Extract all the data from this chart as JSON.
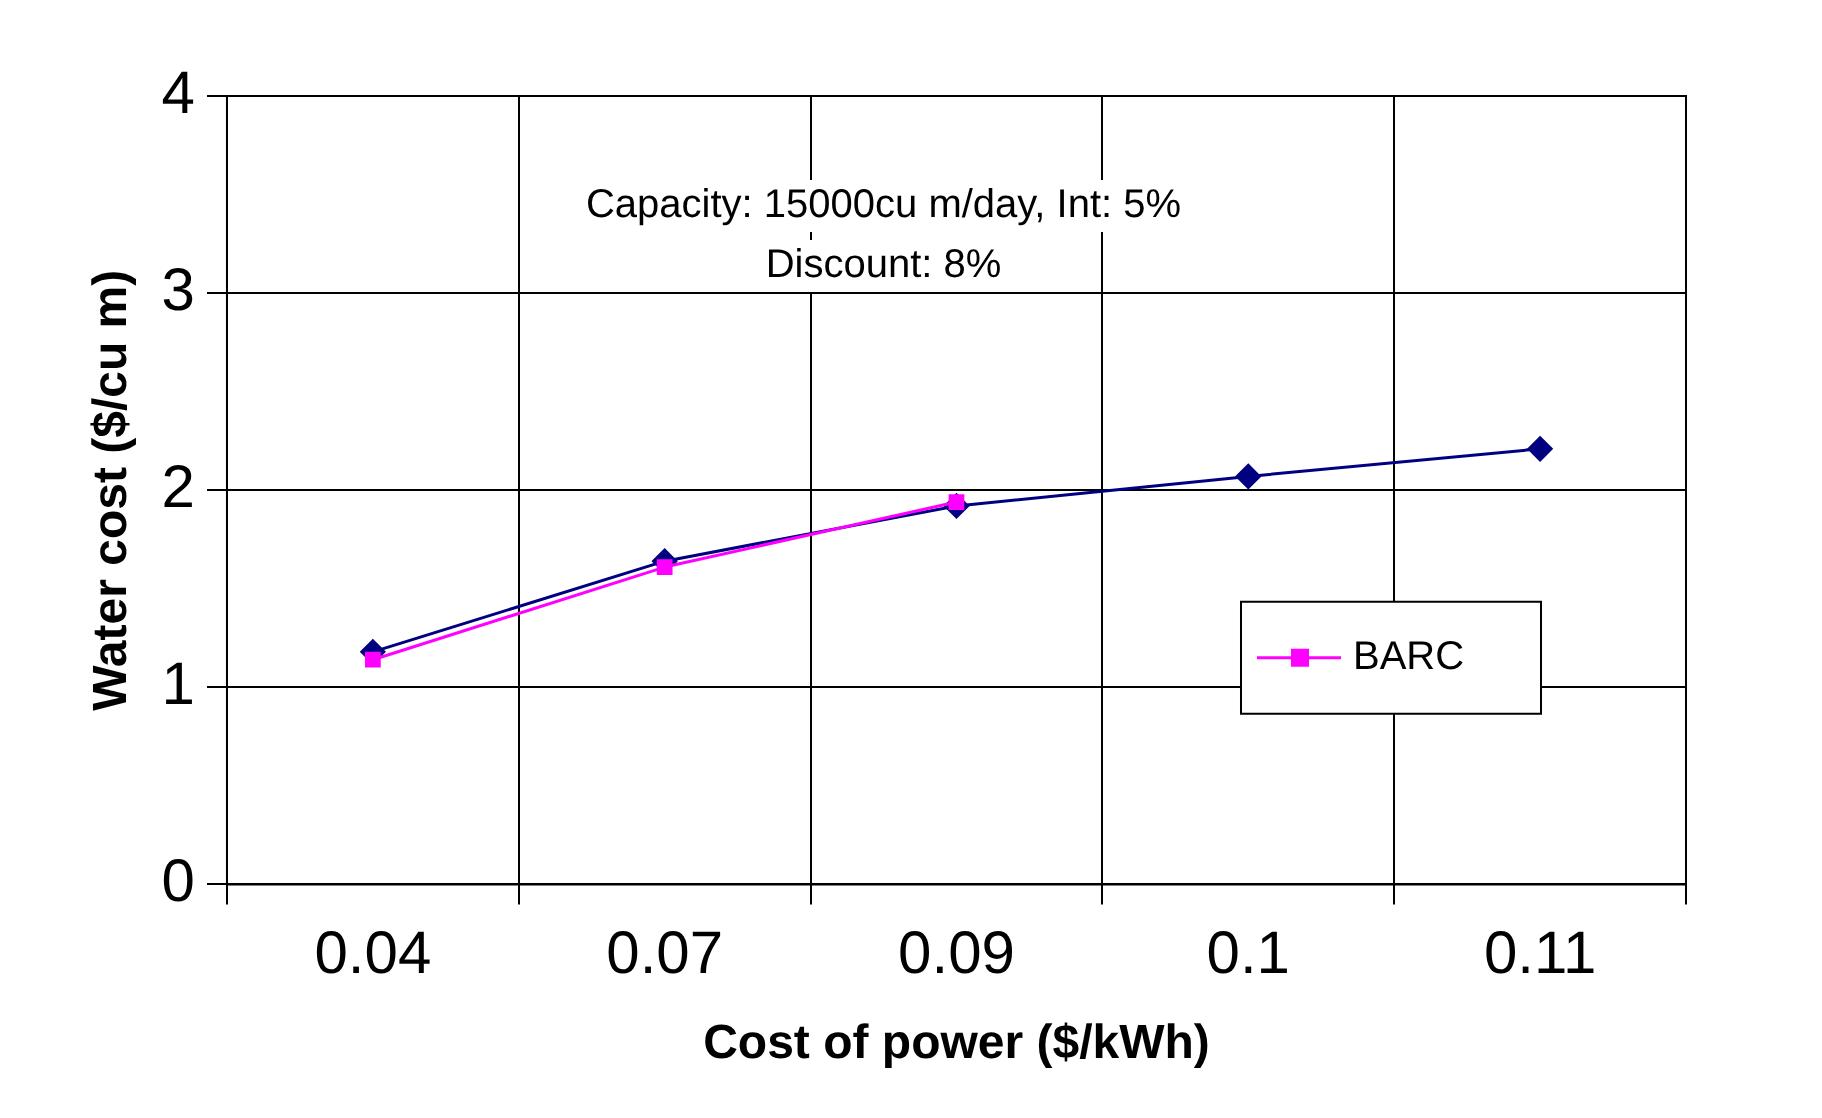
{
  "chart_data": {
    "type": "line",
    "xlabel": "Cost of power ($/kWh)",
    "ylabel": "Water cost ($/cu m)",
    "categories": [
      "0.04",
      "0.07",
      "0.09",
      "0.1",
      "0.11"
    ],
    "series": [
      {
        "color": "#000080",
        "marker": "diamond",
        "values": [
          1.18,
          1.64,
          1.92,
          2.07,
          2.21
        ]
      },
      {
        "name": "BARC",
        "color": "#ff00ff",
        "marker": "square",
        "values": [
          1.14,
          1.61,
          1.94,
          null,
          null
        ]
      }
    ],
    "ylim": [
      0,
      4
    ],
    "yticks": [
      0,
      1,
      2,
      3,
      4
    ],
    "grid": true,
    "legend": "right",
    "annotations": [
      "Capacity: 15000cu m/day, Int: 5%",
      "Discount: 8%"
    ]
  }
}
